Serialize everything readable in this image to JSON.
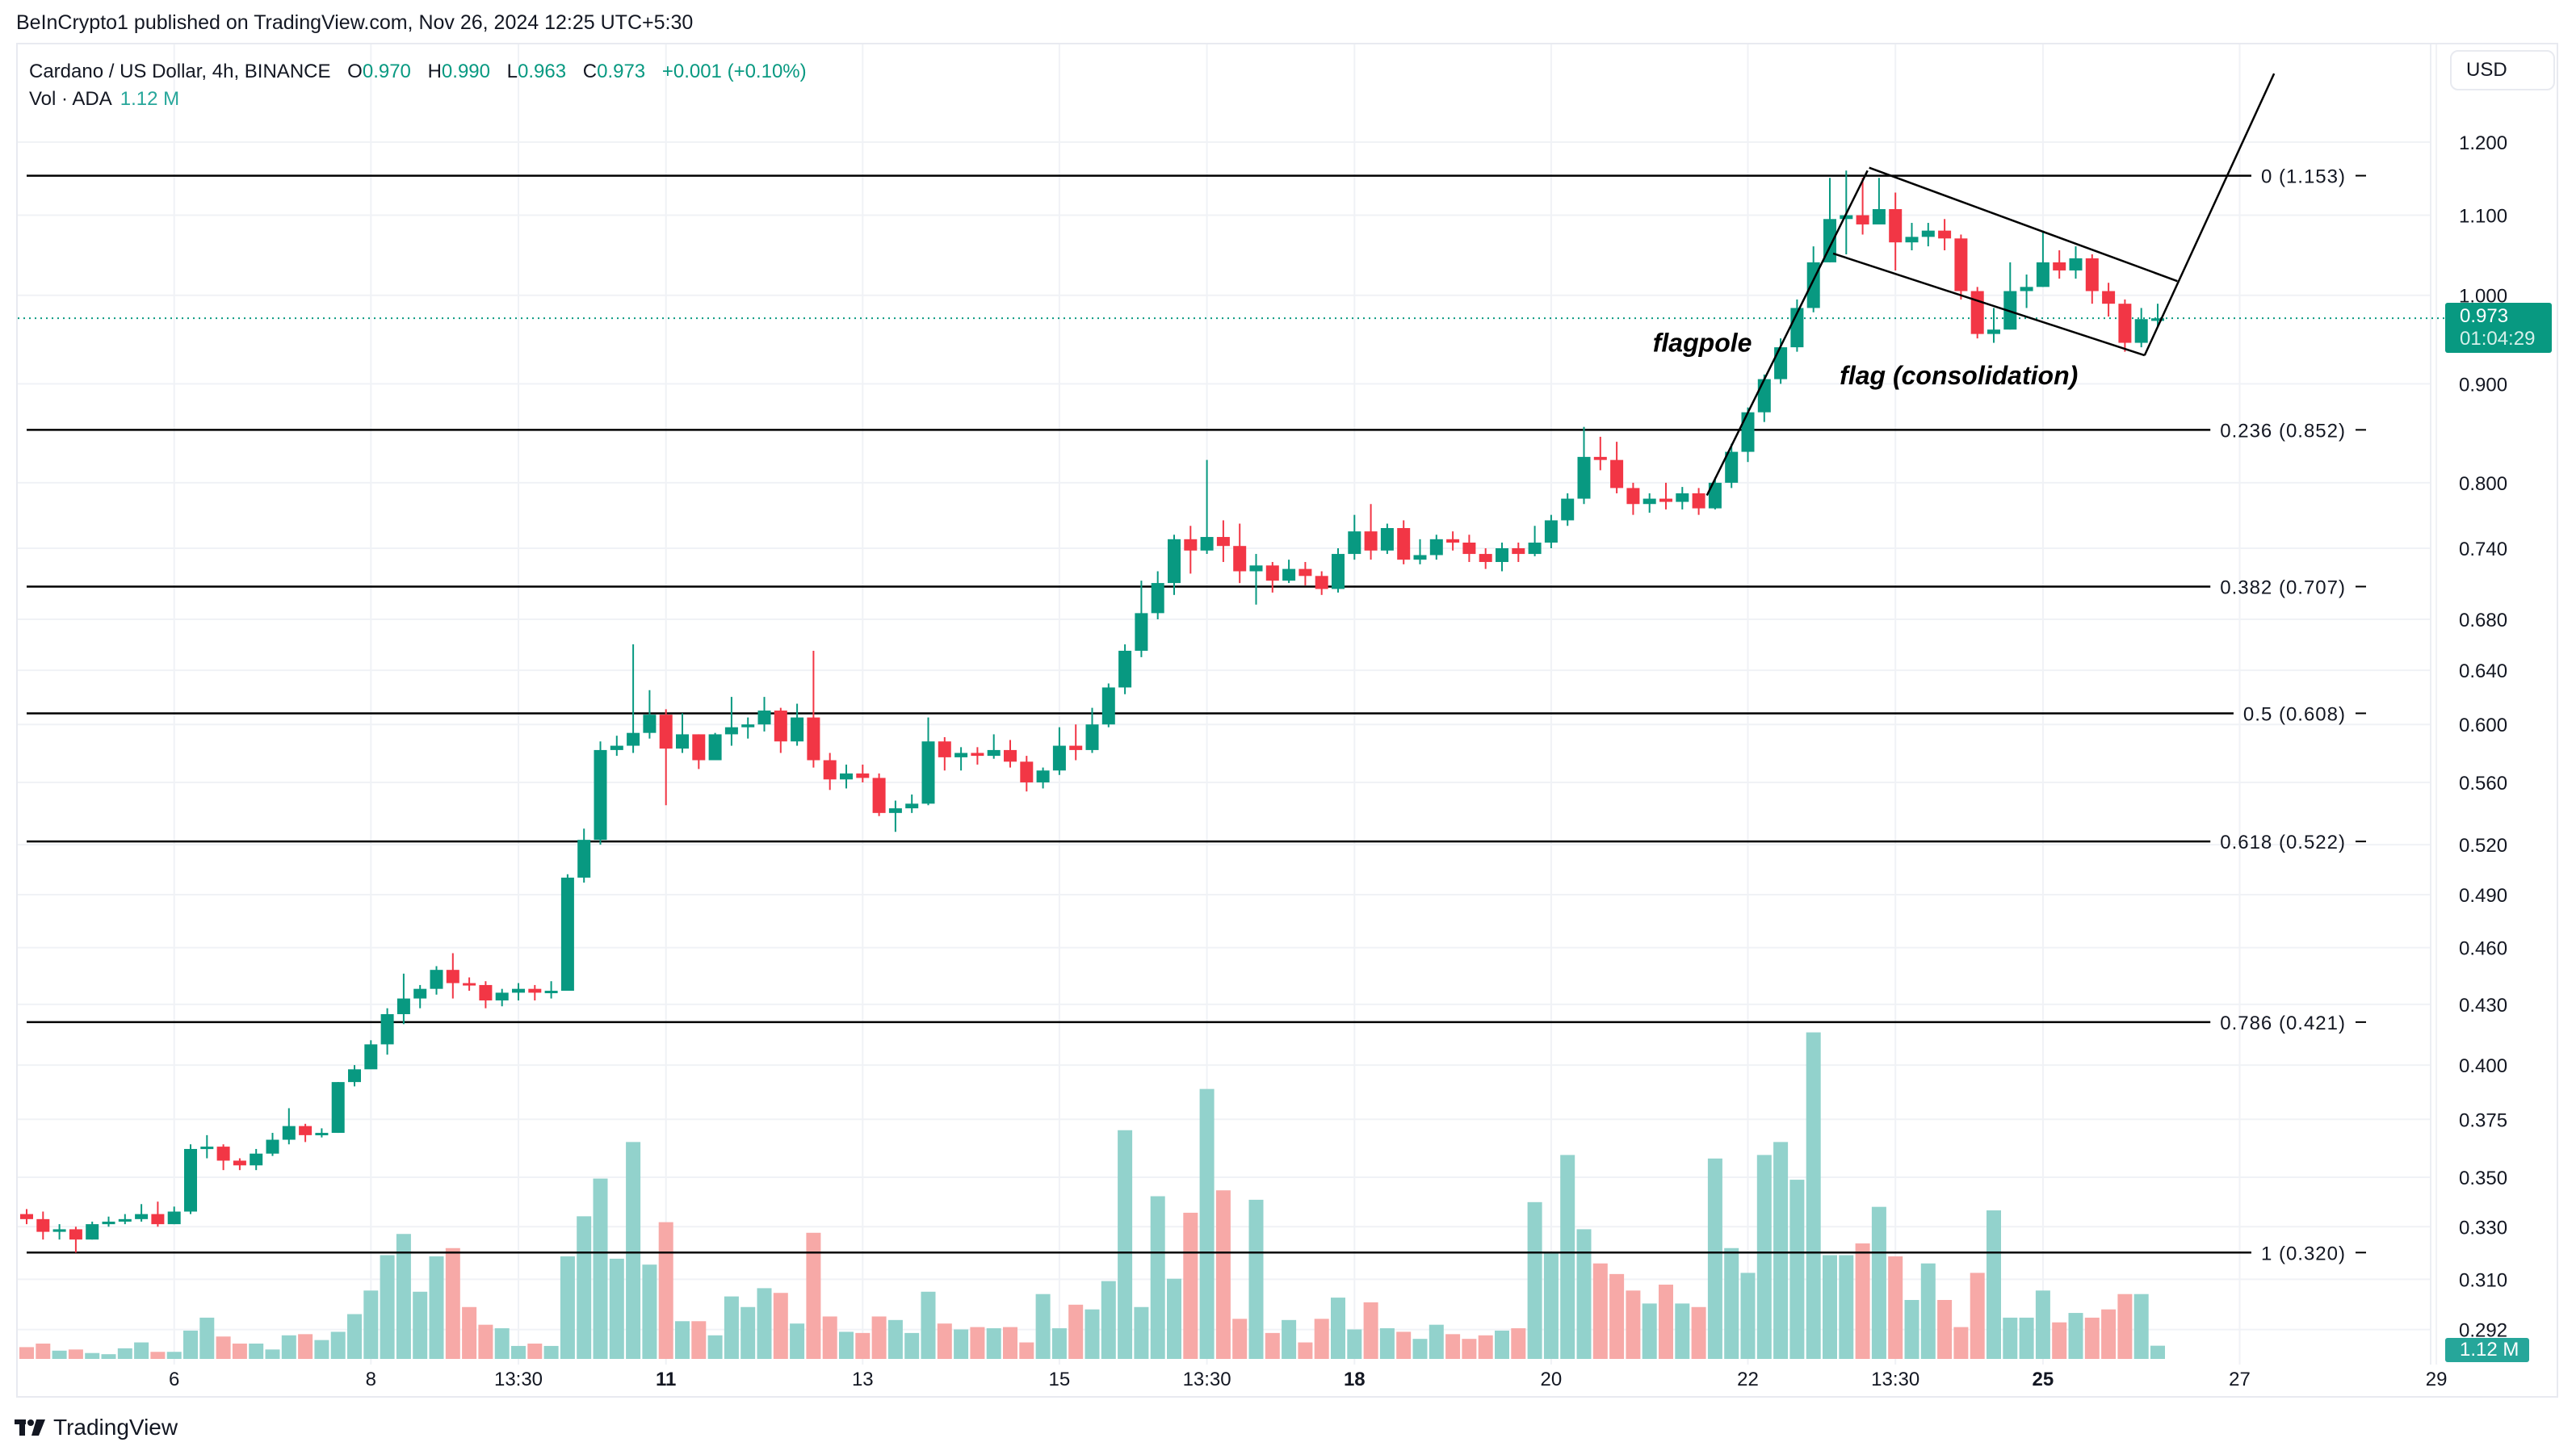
{
  "header": {
    "published": "BeInCrypto1 published on TradingView.com, Nov 26, 2024 12:25 UTC+5:30"
  },
  "legend": {
    "symbol": "Cardano / US Dollar, 4h, BINANCE",
    "o_label": "O",
    "o": "0.970",
    "h_label": "H",
    "h": "0.990",
    "l_label": "L",
    "l": "0.963",
    "c_label": "C",
    "c": "0.973",
    "change": "+0.001 (+0.10%)",
    "vol_label": "Vol · ADA",
    "vol": "1.12 M"
  },
  "currency_button": "USD",
  "last_price": {
    "price": "0.973",
    "countdown": "01:04:29",
    "value": 0.973
  },
  "volume_badge": "1.12 M",
  "brand": "TradingView",
  "colors": {
    "up": "#089981",
    "down": "#f23645",
    "vol_up": "#92d2cc",
    "vol_down": "#f7a9a7",
    "grid": "#f0f2f6"
  },
  "chart_data": {
    "type": "candlestick",
    "title": "Cardano / US Dollar, 4h, BINANCE",
    "scale": "log",
    "ylim": [
      0.285,
      1.33
    ],
    "price_ticks": [
      {
        "v": 1.2,
        "label": "1.200"
      },
      {
        "v": 1.1,
        "label": "1.100"
      },
      {
        "v": 1.0,
        "label": "1.000"
      },
      {
        "v": 0.9,
        "label": "0.900"
      },
      {
        "v": 0.8,
        "label": "0.800"
      },
      {
        "v": 0.74,
        "label": "0.740"
      },
      {
        "v": 0.68,
        "label": "0.680"
      },
      {
        "v": 0.64,
        "label": "0.640"
      },
      {
        "v": 0.6,
        "label": "0.600"
      },
      {
        "v": 0.56,
        "label": "0.560"
      },
      {
        "v": 0.52,
        "label": "0.520"
      },
      {
        "v": 0.49,
        "label": "0.490"
      },
      {
        "v": 0.46,
        "label": "0.460"
      },
      {
        "v": 0.43,
        "label": "0.430"
      },
      {
        "v": 0.4,
        "label": "0.400"
      },
      {
        "v": 0.375,
        "label": "0.375"
      },
      {
        "v": 0.35,
        "label": "0.350"
      },
      {
        "v": 0.33,
        "label": "0.330"
      },
      {
        "v": 0.31,
        "label": "0.310"
      },
      {
        "v": 0.292,
        "label": "0.292"
      }
    ],
    "time_ticks": [
      {
        "at_candle": 9,
        "label": "6"
      },
      {
        "at_candle": 21,
        "label": "8"
      },
      {
        "at_candle": 30,
        "label": "13:30"
      },
      {
        "at_candle": 39,
        "label": "11",
        "bold": true
      },
      {
        "at_candle": 51,
        "label": "13"
      },
      {
        "at_candle": 63,
        "label": "15"
      },
      {
        "at_candle": 72,
        "label": "13:30"
      },
      {
        "at_candle": 81,
        "label": "18",
        "bold": true
      },
      {
        "at_candle": 93,
        "label": "20"
      },
      {
        "at_candle": 105,
        "label": "22"
      },
      {
        "at_candle": 114,
        "label": "13:30"
      },
      {
        "at_candle": 123,
        "label": "25",
        "bold": true
      },
      {
        "at_candle": 135,
        "label": "27"
      },
      {
        "at_candle": 147,
        "label": "29"
      }
    ],
    "fib_levels": [
      {
        "ratio": "0",
        "price": 1.153,
        "label": "0 (1.153)"
      },
      {
        "ratio": "0.236",
        "price": 0.852,
        "label": "0.236 (0.852)"
      },
      {
        "ratio": "0.382",
        "price": 0.707,
        "label": "0.382 (0.707)"
      },
      {
        "ratio": "0.5",
        "price": 0.608,
        "label": "0.5 (0.608)"
      },
      {
        "ratio": "0.618",
        "price": 0.522,
        "label": "0.618 (0.522)"
      },
      {
        "ratio": "0.786",
        "price": 0.421,
        "label": "0.786 (0.421)"
      },
      {
        "ratio": "1",
        "price": 0.32,
        "label": "1 (0.320)"
      }
    ],
    "annotations": {
      "flagpole_label": "flagpole",
      "flag_label": "flag (consolidation)",
      "flagpole_label_at": [
        99.2,
        0.946
      ],
      "flag_label_at": [
        110.6,
        0.91
      ],
      "lines": [
        {
          "name": "flagpole-line",
          "from": [
            102.5,
            0.788
          ],
          "to": [
            112.3,
            1.16
          ]
        },
        {
          "name": "flag-upper-line",
          "from": [
            112.4,
            1.164
          ],
          "to": [
            131.2,
            1.017
          ]
        },
        {
          "name": "flag-lower-line",
          "from": [
            110.2,
            1.051
          ],
          "to": [
            129.2,
            0.931
          ]
        },
        {
          "name": "breakout-line",
          "from": [
            129.2,
            0.931
          ],
          "to": [
            137.1,
            1.302
          ]
        }
      ]
    },
    "volume_unit": "M",
    "candles_ohlcv": [
      [
        0.335,
        0.337,
        0.331,
        0.333,
        1.0
      ],
      [
        0.333,
        0.336,
        0.325,
        0.328,
        1.3
      ],
      [
        0.328,
        0.331,
        0.325,
        0.329,
        0.7
      ],
      [
        0.329,
        0.33,
        0.32,
        0.325,
        0.8
      ],
      [
        0.325,
        0.332,
        0.325,
        0.331,
        0.5
      ],
      [
        0.331,
        0.334,
        0.33,
        0.332,
        0.4
      ],
      [
        0.332,
        0.335,
        0.331,
        0.333,
        0.9
      ],
      [
        0.333,
        0.339,
        0.332,
        0.335,
        1.4
      ],
      [
        0.335,
        0.34,
        0.33,
        0.331,
        0.6
      ],
      [
        0.331,
        0.338,
        0.331,
        0.336,
        0.6
      ],
      [
        0.336,
        0.364,
        0.335,
        0.362,
        2.4
      ],
      [
        0.362,
        0.368,
        0.358,
        0.363,
        3.5
      ],
      [
        0.363,
        0.364,
        0.353,
        0.357,
        1.9
      ],
      [
        0.357,
        0.358,
        0.353,
        0.355,
        1.3
      ],
      [
        0.355,
        0.362,
        0.353,
        0.36,
        1.3
      ],
      [
        0.36,
        0.369,
        0.359,
        0.366,
        0.8
      ],
      [
        0.366,
        0.38,
        0.364,
        0.372,
        2.0
      ],
      [
        0.372,
        0.373,
        0.365,
        0.368,
        2.1
      ],
      [
        0.368,
        0.371,
        0.367,
        0.369,
        1.6
      ],
      [
        0.369,
        0.392,
        0.369,
        0.392,
        2.3
      ],
      [
        0.392,
        0.4,
        0.39,
        0.398,
        3.8
      ],
      [
        0.398,
        0.412,
        0.4,
        0.41,
        5.8
      ],
      [
        0.41,
        0.428,
        0.405,
        0.425,
        8.8
      ],
      [
        0.425,
        0.446,
        0.42,
        0.433,
        10.6
      ],
      [
        0.433,
        0.44,
        0.428,
        0.438,
        5.7
      ],
      [
        0.438,
        0.45,
        0.435,
        0.448,
        8.7
      ],
      [
        0.448,
        0.457,
        0.433,
        0.441,
        9.4
      ],
      [
        0.441,
        0.444,
        0.437,
        0.44,
        4.4
      ],
      [
        0.44,
        0.442,
        0.428,
        0.432,
        2.9
      ],
      [
        0.432,
        0.438,
        0.429,
        0.436,
        2.6
      ],
      [
        0.436,
        0.441,
        0.432,
        0.438,
        1.1
      ],
      [
        0.438,
        0.44,
        0.432,
        0.436,
        1.3
      ],
      [
        0.436,
        0.442,
        0.433,
        0.437,
        1.1
      ],
      [
        0.437,
        0.502,
        0.437,
        0.5,
        8.7
      ],
      [
        0.5,
        0.53,
        0.497,
        0.523,
        12.1
      ],
      [
        0.523,
        0.588,
        0.52,
        0.582,
        15.3
      ],
      [
        0.582,
        0.592,
        0.578,
        0.585,
        8.5
      ],
      [
        0.585,
        0.66,
        0.58,
        0.594,
        18.4
      ],
      [
        0.594,
        0.625,
        0.59,
        0.607,
        8.0
      ],
      [
        0.607,
        0.611,
        0.545,
        0.583,
        11.6
      ],
      [
        0.583,
        0.608,
        0.58,
        0.593,
        3.2
      ],
      [
        0.593,
        0.593,
        0.569,
        0.575,
        3.2
      ],
      [
        0.575,
        0.594,
        0.575,
        0.593,
        2.0
      ],
      [
        0.593,
        0.62,
        0.585,
        0.598,
        5.3
      ],
      [
        0.598,
        0.605,
        0.59,
        0.6,
        4.4
      ],
      [
        0.6,
        0.62,
        0.595,
        0.61,
        6.0
      ],
      [
        0.61,
        0.612,
        0.58,
        0.588,
        5.6
      ],
      [
        0.588,
        0.615,
        0.585,
        0.605,
        3.0
      ],
      [
        0.605,
        0.655,
        0.57,
        0.575,
        10.7
      ],
      [
        0.575,
        0.58,
        0.555,
        0.562,
        3.6
      ],
      [
        0.562,
        0.572,
        0.556,
        0.566,
        2.3
      ],
      [
        0.566,
        0.572,
        0.56,
        0.563,
        2.2
      ],
      [
        0.563,
        0.566,
        0.538,
        0.54,
        3.6
      ],
      [
        0.54,
        0.548,
        0.528,
        0.543,
        3.3
      ],
      [
        0.543,
        0.552,
        0.54,
        0.546,
        2.2
      ],
      [
        0.546,
        0.605,
        0.545,
        0.588,
        5.7
      ],
      [
        0.588,
        0.591,
        0.568,
        0.577,
        3.0
      ],
      [
        0.577,
        0.584,
        0.568,
        0.58,
        2.5
      ],
      [
        0.58,
        0.584,
        0.572,
        0.578,
        2.7
      ],
      [
        0.578,
        0.593,
        0.576,
        0.582,
        2.6
      ],
      [
        0.582,
        0.589,
        0.57,
        0.574,
        2.7
      ],
      [
        0.574,
        0.578,
        0.554,
        0.56,
        1.4
      ],
      [
        0.56,
        0.57,
        0.556,
        0.568,
        5.5
      ],
      [
        0.568,
        0.598,
        0.565,
        0.585,
        2.6
      ],
      [
        0.585,
        0.6,
        0.575,
        0.582,
        4.6
      ],
      [
        0.582,
        0.612,
        0.58,
        0.6,
        4.2
      ],
      [
        0.6,
        0.63,
        0.598,
        0.627,
        6.6
      ],
      [
        0.627,
        0.66,
        0.622,
        0.655,
        19.4
      ],
      [
        0.655,
        0.712,
        0.65,
        0.685,
        4.4
      ],
      [
        0.685,
        0.72,
        0.68,
        0.71,
        13.8
      ],
      [
        0.71,
        0.752,
        0.7,
        0.748,
        6.8
      ],
      [
        0.748,
        0.76,
        0.718,
        0.738,
        12.4
      ],
      [
        0.738,
        0.822,
        0.735,
        0.75,
        22.9
      ],
      [
        0.75,
        0.765,
        0.728,
        0.742,
        14.3
      ],
      [
        0.742,
        0.762,
        0.71,
        0.72,
        3.4
      ],
      [
        0.72,
        0.735,
        0.692,
        0.725,
        13.5
      ],
      [
        0.725,
        0.728,
        0.702,
        0.712,
        2.2
      ],
      [
        0.712,
        0.73,
        0.71,
        0.722,
        3.3
      ],
      [
        0.722,
        0.728,
        0.708,
        0.716,
        1.4
      ],
      [
        0.716,
        0.72,
        0.7,
        0.705,
        3.4
      ],
      [
        0.705,
        0.74,
        0.702,
        0.735,
        5.2
      ],
      [
        0.735,
        0.77,
        0.73,
        0.755,
        2.5
      ],
      [
        0.755,
        0.78,
        0.73,
        0.738,
        4.8
      ],
      [
        0.738,
        0.762,
        0.735,
        0.758,
        2.6
      ],
      [
        0.758,
        0.765,
        0.726,
        0.73,
        2.3
      ],
      [
        0.73,
        0.748,
        0.726,
        0.734,
        1.7
      ],
      [
        0.734,
        0.752,
        0.73,
        0.748,
        2.9
      ],
      [
        0.748,
        0.755,
        0.738,
        0.745,
        2.1
      ],
      [
        0.745,
        0.752,
        0.728,
        0.735,
        1.7
      ],
      [
        0.735,
        0.74,
        0.722,
        0.728,
        2.0
      ],
      [
        0.728,
        0.745,
        0.72,
        0.74,
        2.4
      ],
      [
        0.74,
        0.745,
        0.728,
        0.735,
        2.6
      ],
      [
        0.735,
        0.76,
        0.733,
        0.745,
        13.3
      ],
      [
        0.745,
        0.77,
        0.74,
        0.765,
        9.0
      ],
      [
        0.765,
        0.79,
        0.76,
        0.785,
        17.3
      ],
      [
        0.785,
        0.855,
        0.78,
        0.825,
        11.0
      ],
      [
        0.825,
        0.845,
        0.812,
        0.822,
        8.1
      ],
      [
        0.822,
        0.84,
        0.79,
        0.795,
        7.2
      ],
      [
        0.795,
        0.8,
        0.77,
        0.78,
        5.8
      ],
      [
        0.78,
        0.79,
        0.772,
        0.785,
        4.7
      ],
      [
        0.785,
        0.8,
        0.775,
        0.782,
        6.3
      ],
      [
        0.782,
        0.796,
        0.775,
        0.79,
        4.7
      ],
      [
        0.79,
        0.795,
        0.77,
        0.776,
        4.4
      ],
      [
        0.776,
        0.805,
        0.775,
        0.8,
        17.0
      ],
      [
        0.8,
        0.838,
        0.795,
        0.83,
        9.4
      ],
      [
        0.83,
        0.875,
        0.82,
        0.87,
        7.3
      ],
      [
        0.87,
        0.91,
        0.86,
        0.905,
        17.3
      ],
      [
        0.905,
        0.95,
        0.9,
        0.94,
        18.4
      ],
      [
        0.94,
        0.995,
        0.935,
        0.985,
        15.2
      ],
      [
        0.985,
        1.06,
        0.98,
        1.04,
        27.7
      ],
      [
        1.04,
        1.15,
        1.04,
        1.095,
        8.8
      ],
      [
        1.095,
        1.16,
        1.05,
        1.1,
        8.8
      ],
      [
        1.1,
        1.15,
        1.075,
        1.088,
        9.8
      ],
      [
        1.088,
        1.15,
        1.09,
        1.108,
        12.9
      ],
      [
        1.108,
        1.13,
        1.03,
        1.065,
        8.7
      ],
      [
        1.065,
        1.09,
        1.055,
        1.072,
        5.0
      ],
      [
        1.072,
        1.09,
        1.06,
        1.08,
        8.1
      ],
      [
        1.08,
        1.095,
        1.055,
        1.07,
        5.0
      ],
      [
        1.07,
        1.075,
        0.995,
        1.005,
        2.7
      ],
      [
        1.005,
        1.01,
        0.95,
        0.955,
        7.3
      ],
      [
        0.955,
        0.985,
        0.945,
        0.96,
        12.6
      ],
      [
        0.96,
        1.04,
        0.96,
        1.005,
        3.5
      ],
      [
        1.005,
        1.025,
        0.985,
        1.01,
        3.5
      ],
      [
        1.01,
        1.08,
        1.01,
        1.04,
        5.8
      ],
      [
        1.04,
        1.055,
        1.02,
        1.03,
        3.1
      ],
      [
        1.03,
        1.06,
        1.02,
        1.045,
        3.9
      ],
      [
        1.045,
        1.05,
        0.99,
        1.005,
        3.5
      ],
      [
        1.005,
        1.015,
        0.975,
        0.99,
        4.2
      ],
      [
        0.99,
        0.995,
        0.935,
        0.945,
        5.5
      ],
      [
        0.945,
        0.985,
        0.94,
        0.972,
        5.5
      ],
      [
        0.97,
        0.99,
        0.963,
        0.973,
        1.12
      ]
    ]
  }
}
